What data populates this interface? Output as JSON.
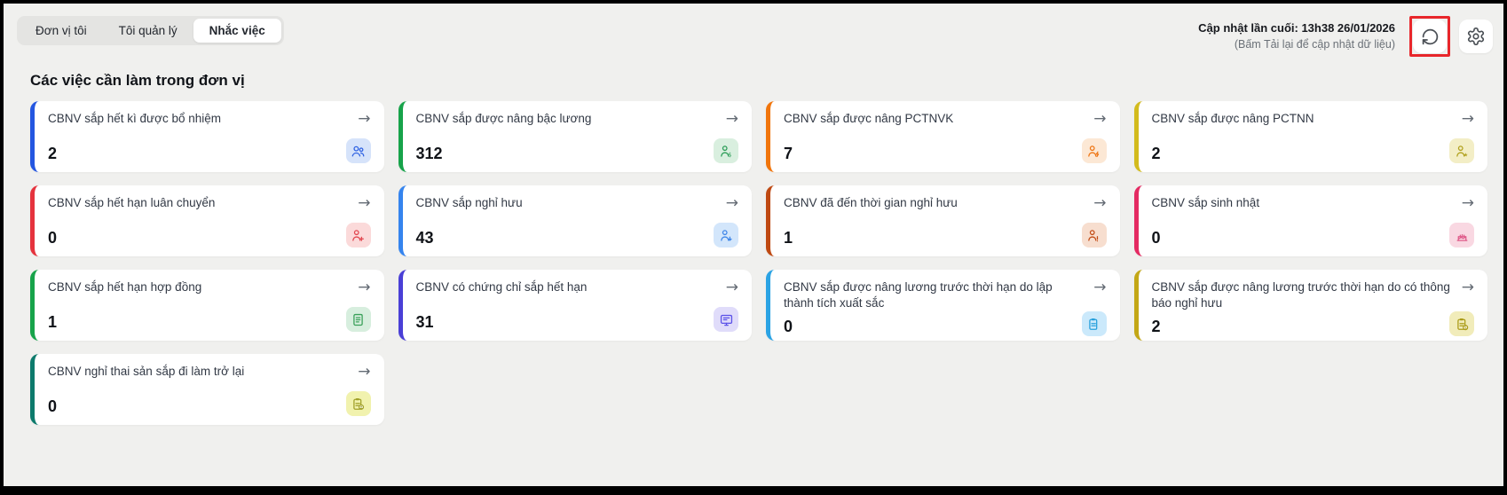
{
  "tabs": [
    {
      "label": "Đơn vị tôi",
      "active": false
    },
    {
      "label": "Tôi quản lý",
      "active": false
    },
    {
      "label": "Nhắc việc",
      "active": true
    }
  ],
  "header": {
    "last_updated": "Cập nhật lần cuối: 13h38 26/01/2026",
    "reload_hint": "(Bấm Tải lại để cập nhật dữ liệu)"
  },
  "section_title": "Các việc cần làm trong đơn vị",
  "icons": {
    "arrow": "→"
  },
  "cards": [
    {
      "title": "CBNV sắp hết kì được bổ nhiệm",
      "value": "2",
      "accent": "#2456e0",
      "badge_bg": "#d6e3fa",
      "icon_color": "#2f62e2",
      "icon": "people-icon"
    },
    {
      "title": "CBNV sắp được nâng bậc lương",
      "value": "312",
      "accent": "#17a34a",
      "badge_bg": "#d9efdf",
      "icon_color": "#2a9c56",
      "icon": "person-dollar-icon"
    },
    {
      "title": "CBNV sắp được nâng PCTNVK",
      "value": "7",
      "accent": "#f1750b",
      "badge_bg": "#fce8d5",
      "icon_color": "#ee7513",
      "icon": "person-bolt-icon"
    },
    {
      "title": "CBNV sắp được nâng PCTNN",
      "value": "2",
      "accent": "#d3bb1d",
      "badge_bg": "#f3eec6",
      "icon_color": "#b0a01c",
      "icon": "person-star-icon"
    },
    {
      "title": "CBNV sắp hết hạn luân chuyển",
      "value": "0",
      "accent": "#e5333d",
      "badge_bg": "#fbdada",
      "icon_color": "#e2454e",
      "icon": "person-plus-icon"
    },
    {
      "title": "CBNV sắp nghỉ hưu",
      "value": "43",
      "accent": "#3584ee",
      "badge_bg": "#d3e6fb",
      "icon_color": "#3f86e8",
      "icon": "person-down-icon"
    },
    {
      "title": "CBNV đã đến thời gian nghỉ hưu",
      "value": "1",
      "accent": "#bf4912",
      "badge_bg": "#f7decf",
      "icon_color": "#c24b14",
      "icon": "person-alert-icon"
    },
    {
      "title": "CBNV sắp sinh nhật",
      "value": "0",
      "accent": "#e42a62",
      "badge_bg": "#f9d8e2",
      "icon_color": "#df5b8a",
      "icon": "cake-icon"
    },
    {
      "title": "CBNV sắp hết hạn hợp đồng",
      "value": "1",
      "accent": "#17a34a",
      "badge_bg": "#d7eede",
      "icon_color": "#39a059",
      "icon": "contract-icon"
    },
    {
      "title": "CBNV có chứng chỉ sắp hết hạn",
      "value": "31",
      "accent": "#4a3fd6",
      "badge_bg": "#e0dcfa",
      "icon_color": "#5a50e8",
      "icon": "certificate-icon"
    },
    {
      "title": "CBNV sắp được nâng lương trước thời hạn do lập thành tích xuất sắc",
      "value": "0",
      "accent": "#2ba3e4",
      "badge_bg": "#cbe9fb",
      "icon_color": "#27a0dc",
      "icon": "clipboard-icon"
    },
    {
      "title": "CBNV sắp được nâng lương trước thời hạn do có thông báo nghỉ hưu",
      "value": "2",
      "accent": "#c3a716",
      "badge_bg": "#f1ecba",
      "icon_color": "#ab9c18",
      "icon": "clipboard-coin-icon"
    },
    {
      "title": "CBNV nghỉ thai sản sắp đi làm trở lại",
      "value": "0",
      "accent": "#0d7a6c",
      "badge_bg": "#f1f2ae",
      "icon_color": "#a0a028",
      "icon": "clipboard-person-icon"
    }
  ]
}
